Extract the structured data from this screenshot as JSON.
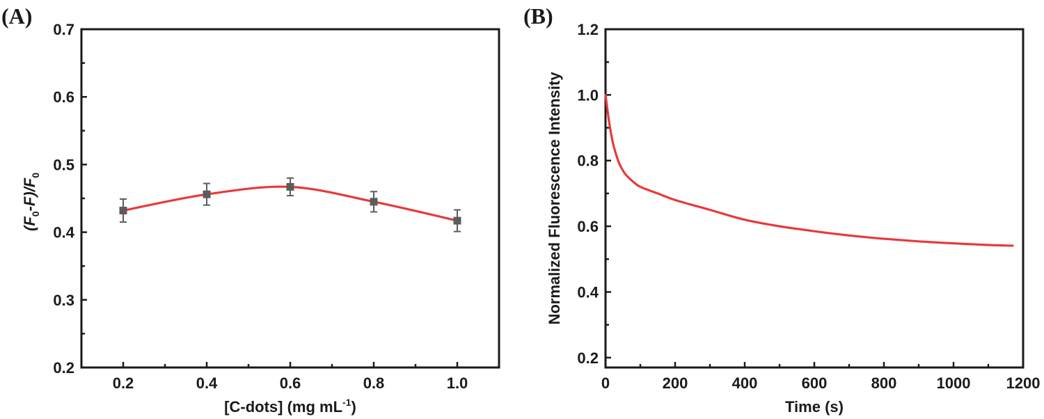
{
  "chart_data": [
    {
      "panel_label": "(A)",
      "type": "line",
      "xlabel": "[C-dots] (mg mL",
      "xlabel_sup": "-1",
      "xlabel_end": ")",
      "ylabel_parts": [
        "(F",
        "0",
        "-F)/F",
        "0"
      ],
      "xlim": [
        0.1,
        1.1
      ],
      "ylim": [
        0.2,
        0.7
      ],
      "xticks": [
        0.2,
        0.4,
        0.6,
        0.8,
        1.0
      ],
      "xtick_labels": [
        "0.2",
        "0.4",
        "0.6",
        "0.8",
        "1.0"
      ],
      "yticks": [
        0.2,
        0.3,
        0.4,
        0.5,
        0.6,
        0.7
      ],
      "ytick_labels": [
        "0.2",
        "0.3",
        "0.4",
        "0.5",
        "0.6",
        "0.7"
      ],
      "series": [
        {
          "name": "(F0-F)/F0",
          "x": [
            0.2,
            0.4,
            0.6,
            0.8,
            1.0
          ],
          "values": [
            0.432,
            0.456,
            0.467,
            0.445,
            0.417
          ],
          "errors": [
            0.017,
            0.016,
            0.013,
            0.015,
            0.016
          ]
        }
      ],
      "colors": {
        "line": "#e8393b",
        "marker": "#5c5c5c"
      }
    },
    {
      "panel_label": "(B)",
      "type": "line",
      "xlabel": "Time (s)",
      "ylabel": "Normalized Fluorescence Intensity",
      "xlim": [
        0,
        1200
      ],
      "ylim": [
        0.17,
        1.2
      ],
      "xticks": [
        0,
        200,
        400,
        600,
        800,
        1000,
        1200
      ],
      "xtick_labels": [
        "0",
        "200",
        "400",
        "600",
        "800",
        "1000",
        "1200"
      ],
      "yticks": [
        0.2,
        0.4,
        0.6,
        0.8,
        1.0,
        1.2
      ],
      "ytick_labels": [
        "0.2",
        "0.4",
        "0.6",
        "0.8",
        "1.0",
        "1.2"
      ],
      "series": [
        {
          "name": "Normalized Fluorescence Intensity",
          "x": [
            0,
            10,
            20,
            30,
            40,
            50,
            60,
            80,
            100,
            150,
            200,
            300,
            400,
            500,
            600,
            700,
            800,
            900,
            1000,
            1100,
            1170
          ],
          "values": [
            1.0,
            0.92,
            0.86,
            0.82,
            0.79,
            0.77,
            0.755,
            0.735,
            0.72,
            0.7,
            0.68,
            0.65,
            0.62,
            0.6,
            0.585,
            0.572,
            0.562,
            0.554,
            0.548,
            0.543,
            0.541
          ]
        }
      ],
      "colors": {
        "line": "#e8393b"
      }
    }
  ]
}
